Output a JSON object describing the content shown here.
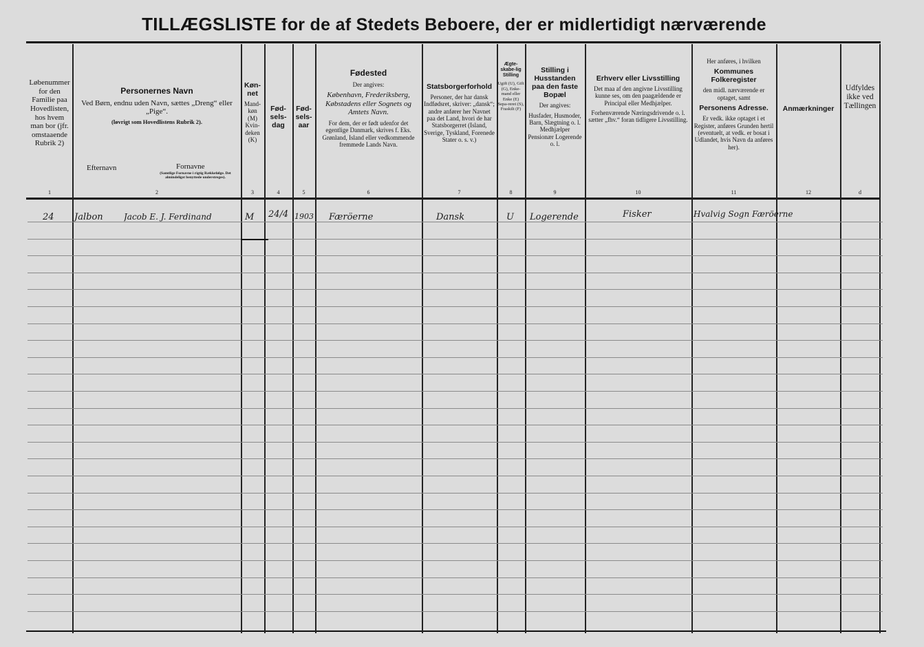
{
  "title": {
    "part1": "TILLÆGSLISTE",
    "part2": "for de af Stedets Beboere, der er",
    "part3": "midlertidigt",
    "part4": "nærværende"
  },
  "columns": [
    {
      "number": "1",
      "text": "Løbenummer for den Familie paa Hovedlisten, hos hvem man bor (jfr. omstaaende Rubrik 2)"
    },
    {
      "number": "2",
      "heading": "Personernes Navn",
      "text": "Ved Børn, endnu uden Navn, sættes „Dreng“ eller „Pige“.",
      "note": "(løvrigt som Hovedlistens Rubrik 2).",
      "sub1": "Efternavn",
      "sub2": "Fornavne",
      "sub2_note": "(Samtlige Fornavne i rigtig Rækkefølge. Det almindeligst benyttede understreges)."
    },
    {
      "number": "3",
      "heading": "Køn-net",
      "text": "Mand-køn (M) Kvin-deken (K)"
    },
    {
      "number": "4",
      "heading": "Fød-sels-dag"
    },
    {
      "number": "5",
      "heading": "Fød-sels-aar"
    },
    {
      "number": "6",
      "heading": "Fødested",
      "text": "Der angives:",
      "text2": "København, Frederiksberg, Købstadens eller Sognets og Amtets Navn.",
      "text3": "For dem, der er født udenfor det egentlige Danmark, skrives f. Eks. Grønland, Island eller vedkommende fremmede Lands Navn."
    },
    {
      "number": "7",
      "heading": "Statsborgerforhold",
      "text": "Personer, der har dansk Indfødsret, skriver: „dansk“; andre anfører her Navnet paa det Land, hvori de har Statsborgerret (Island, Sverige, Tyskland, Forenede Stater o. s. v.)"
    },
    {
      "number": "8",
      "heading": "Ægte-skabe-lig Stilling",
      "text": "Ugift (U), Gift (G), Enke-mand eller Enke (E) Sepa-reret (S), Fraskilt (F)"
    },
    {
      "number": "9",
      "heading": "Stilling i Husstanden paa den faste Bopæl",
      "text": "Der angives:",
      "text2": "Husfader, Husmoder, Barn, Slægtning o. l. Medhjælper Pensionær Logerende o. l."
    },
    {
      "number": "10",
      "heading": "Erhverv eller Livsstilling",
      "text": "Det maa af den angivne Livsstilling kunne ses, om den paagældende er Principal eller Medhjælper.",
      "text2": "Forhenværende Næringsdrivende o. l. sætter „fhv.“ foran tidligere Livsstilling."
    },
    {
      "number": "11",
      "pre": "Her anføres, i hvilken",
      "heading": "Kommunes Folkeregister",
      "text": "den midl. nærværende er optaget, samt",
      "heading2": "Personens Adresse.",
      "text2": "Er vedk. ikke optaget i et Register, anføres Grunden hertil (eventuelt, at vedk. er bosat i Udlandet, hvis Navn da anføres her)."
    },
    {
      "number": "12",
      "heading": "Anmærkninger"
    },
    {
      "number": "d",
      "text": "Udfyldes ikke ved Tællingen"
    }
  ],
  "entry": {
    "family_no": "24",
    "surname": "Jalbon",
    "given_names": "Jacob E. J. Ferdinand",
    "sex": "M",
    "birth_day": "24/4",
    "birth_year": "1903",
    "birthplace": "Færöerne",
    "citizenship": "Dansk",
    "marital_status": "U",
    "household_position": "Logerende",
    "occupation": "Fisker",
    "register_address": "Hvalvig Sogn Færöerne"
  }
}
